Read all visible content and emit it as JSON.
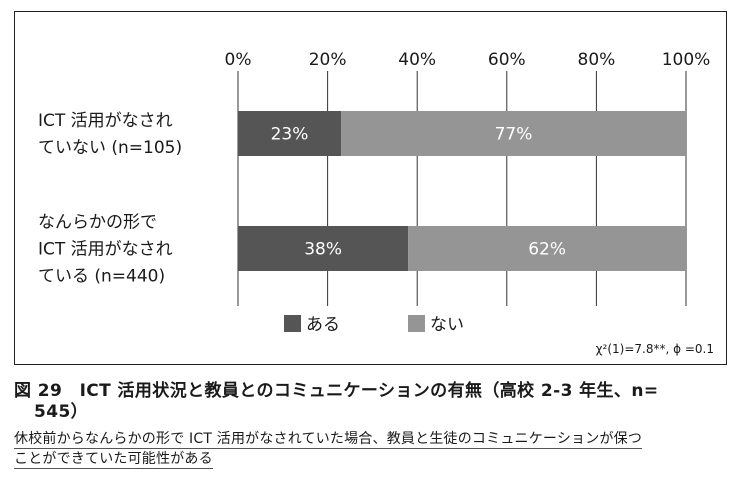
{
  "chart_data": {
    "type": "bar",
    "stacked": true,
    "orientation": "horizontal",
    "x_ticks": [
      "0%",
      "20%",
      "40%",
      "60%",
      "80%",
      "100%"
    ],
    "xlim": [
      0,
      100
    ],
    "categories": [
      [
        "ICT 活用がなされ",
        "ていない (n=105)"
      ],
      [
        "なんらかの形で",
        "ICT 活用がなされ",
        "ている (n=440)"
      ]
    ],
    "series": [
      {
        "name": "ある",
        "color": "#555555",
        "values": [
          23,
          38
        ],
        "labels": [
          "23%",
          "38%"
        ]
      },
      {
        "name": "ない",
        "color": "#959595",
        "values": [
          77,
          62
        ],
        "labels": [
          "77%",
          "62%"
        ]
      }
    ],
    "legend_placement": "bottom",
    "stat_note": "χ²(1)=7.8**, ϕ =0.1",
    "grid": true
  },
  "caption": {
    "title": "図 29　ICT 活用状況と教員とのコミュニケーションの有無（高校 2-3 年生、n=",
    "title_cont": "545）",
    "subtitle_line1": "休校前からなんらかの形で ICT 活用がなされていた場合、教員と生徒のコミュニケーションが保つ",
    "subtitle_line2": "ことができていた可能性がある"
  }
}
